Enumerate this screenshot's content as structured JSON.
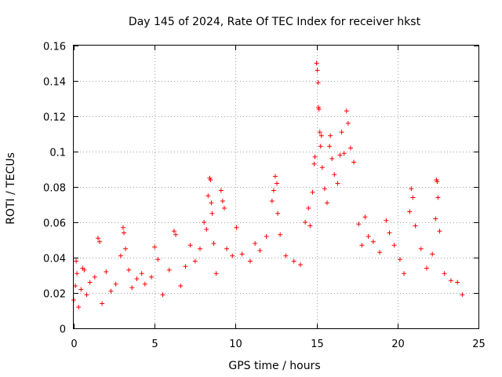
{
  "chart_data": {
    "type": "scatter",
    "title": "Day 145 of 2024, Rate Of TEC Index for receiver hkst",
    "xlabel": "GPS time / hours",
    "ylabel": "ROTI / TECUs",
    "xlim": [
      0,
      25
    ],
    "ylim": [
      0,
      0.16
    ],
    "grid": true,
    "marker": "plus",
    "color": "#ff0000",
    "x_ticks": [
      0,
      5,
      10,
      15,
      20,
      25
    ],
    "x_tick_labels": [
      "0",
      "5",
      "10",
      "15",
      "20",
      "25"
    ],
    "y_ticks": [
      0,
      0.02,
      0.04,
      0.06,
      0.08,
      0.1,
      0.12,
      0.14,
      0.16
    ],
    "y_tick_labels": [
      "0",
      "0.02",
      "0.04",
      "0.06",
      "0.08",
      "0.1",
      "0.12",
      "0.14",
      "0.16"
    ],
    "series": [
      {
        "name": "ROTI",
        "points": [
          [
            0.0,
            0.016
          ],
          [
            0.1,
            0.024
          ],
          [
            0.15,
            0.038
          ],
          [
            0.2,
            0.031
          ],
          [
            0.3,
            0.012
          ],
          [
            0.45,
            0.022
          ],
          [
            0.55,
            0.034
          ],
          [
            0.65,
            0.033
          ],
          [
            0.8,
            0.019
          ],
          [
            1.0,
            0.026
          ],
          [
            1.3,
            0.029
          ],
          [
            1.5,
            0.051
          ],
          [
            1.6,
            0.049
          ],
          [
            1.75,
            0.014
          ],
          [
            2.0,
            0.032
          ],
          [
            2.3,
            0.021
          ],
          [
            2.6,
            0.025
          ],
          [
            2.9,
            0.041
          ],
          [
            3.05,
            0.057
          ],
          [
            3.1,
            0.054
          ],
          [
            3.2,
            0.045
          ],
          [
            3.4,
            0.033
          ],
          [
            3.6,
            0.023
          ],
          [
            3.9,
            0.028
          ],
          [
            4.2,
            0.031
          ],
          [
            4.4,
            0.025
          ],
          [
            4.8,
            0.029
          ],
          [
            5.0,
            0.046
          ],
          [
            5.2,
            0.039
          ],
          [
            5.5,
            0.019
          ],
          [
            5.9,
            0.033
          ],
          [
            6.2,
            0.055
          ],
          [
            6.3,
            0.053
          ],
          [
            6.6,
            0.024
          ],
          [
            6.9,
            0.035
          ],
          [
            7.2,
            0.047
          ],
          [
            7.5,
            0.038
          ],
          [
            7.8,
            0.045
          ],
          [
            8.05,
            0.06
          ],
          [
            8.2,
            0.056
          ],
          [
            8.3,
            0.075
          ],
          [
            8.4,
            0.085
          ],
          [
            8.45,
            0.084
          ],
          [
            8.5,
            0.071
          ],
          [
            8.55,
            0.065
          ],
          [
            8.65,
            0.048
          ],
          [
            8.8,
            0.031
          ],
          [
            9.1,
            0.078
          ],
          [
            9.2,
            0.072
          ],
          [
            9.3,
            0.068
          ],
          [
            9.45,
            0.045
          ],
          [
            9.8,
            0.041
          ],
          [
            10.05,
            0.057
          ],
          [
            10.4,
            0.042
          ],
          [
            10.9,
            0.038
          ],
          [
            11.2,
            0.048
          ],
          [
            11.5,
            0.044
          ],
          [
            11.9,
            0.052
          ],
          [
            12.25,
            0.072
          ],
          [
            12.35,
            0.078
          ],
          [
            12.45,
            0.086
          ],
          [
            12.55,
            0.082
          ],
          [
            12.6,
            0.065
          ],
          [
            12.75,
            0.053
          ],
          [
            13.1,
            0.041
          ],
          [
            13.6,
            0.038
          ],
          [
            14.0,
            0.036
          ],
          [
            14.3,
            0.06
          ],
          [
            14.5,
            0.068
          ],
          [
            14.6,
            0.058
          ],
          [
            14.75,
            0.077
          ],
          [
            14.85,
            0.093
          ],
          [
            14.9,
            0.097
          ],
          [
            15.0,
            0.15
          ],
          [
            15.05,
            0.146
          ],
          [
            15.1,
            0.139
          ],
          [
            15.12,
            0.125
          ],
          [
            15.15,
            0.124
          ],
          [
            15.2,
            0.111
          ],
          [
            15.25,
            0.103
          ],
          [
            15.3,
            0.109
          ],
          [
            15.35,
            0.091
          ],
          [
            15.5,
            0.079
          ],
          [
            15.65,
            0.071
          ],
          [
            15.8,
            0.103
          ],
          [
            15.85,
            0.109
          ],
          [
            15.95,
            0.096
          ],
          [
            16.1,
            0.087
          ],
          [
            16.3,
            0.082
          ],
          [
            16.45,
            0.098
          ],
          [
            16.55,
            0.111
          ],
          [
            16.7,
            0.099
          ],
          [
            16.85,
            0.123
          ],
          [
            16.95,
            0.116
          ],
          [
            17.1,
            0.102
          ],
          [
            17.3,
            0.094
          ],
          [
            17.6,
            0.059
          ],
          [
            17.8,
            0.047
          ],
          [
            18.0,
            0.063
          ],
          [
            18.2,
            0.052
          ],
          [
            18.5,
            0.049
          ],
          [
            18.9,
            0.043
          ],
          [
            19.3,
            0.061
          ],
          [
            19.5,
            0.054
          ],
          [
            19.8,
            0.047
          ],
          [
            20.15,
            0.039
          ],
          [
            20.4,
            0.031
          ],
          [
            20.75,
            0.066
          ],
          [
            20.85,
            0.079
          ],
          [
            20.95,
            0.074
          ],
          [
            21.1,
            0.058
          ],
          [
            21.45,
            0.045
          ],
          [
            21.8,
            0.034
          ],
          [
            22.15,
            0.042
          ],
          [
            22.35,
            0.062
          ],
          [
            22.4,
            0.084
          ],
          [
            22.45,
            0.083
          ],
          [
            22.5,
            0.074
          ],
          [
            22.6,
            0.055
          ],
          [
            22.9,
            0.031
          ],
          [
            23.3,
            0.027
          ],
          [
            23.7,
            0.026
          ],
          [
            24.0,
            0.019
          ]
        ]
      }
    ]
  }
}
